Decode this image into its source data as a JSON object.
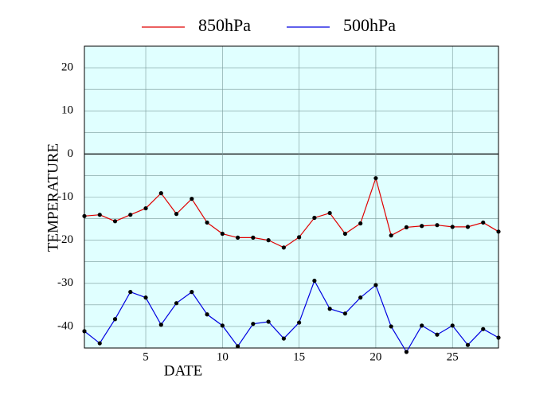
{
  "chart_data": {
    "type": "line",
    "x_label": "DATE",
    "y_label": "TEMPERATURE",
    "x": [
      1,
      2,
      3,
      4,
      5,
      6,
      7,
      8,
      9,
      10,
      11,
      12,
      13,
      14,
      15,
      16,
      17,
      18,
      19,
      20,
      21,
      22,
      23,
      24,
      25,
      26,
      27,
      28
    ],
    "series": [
      {
        "name": "850hPa",
        "color": "#e00000",
        "values": [
          -14.4,
          -14.1,
          -15.6,
          -14.1,
          -12.6,
          -9.1,
          -13.9,
          -10.4,
          -15.9,
          -18.5,
          -19.4,
          -19.4,
          -20,
          -21.7,
          -19.3,
          -14.8,
          -13.7,
          -18.5,
          -16.1,
          -5.6,
          -18.9,
          -17,
          -16.7,
          -16.5,
          -16.9,
          -16.9,
          -15.9,
          -18
        ]
      },
      {
        "name": "500hPa",
        "color": "#0000e0",
        "values": [
          -41.1,
          -43.9,
          -38.3,
          -32,
          -33.3,
          -39.6,
          -34.6,
          -32,
          -37.2,
          -39.8,
          -44.6,
          -39.4,
          -38.9,
          -42.8,
          -39.1,
          -29.4,
          -35.9,
          -37,
          -33.3,
          -30.4,
          -40,
          -45.9,
          -39.8,
          -41.9,
          -39.8,
          -44.3,
          -40.6,
          -42.6
        ]
      }
    ],
    "xlim": [
      1,
      28
    ],
    "xticks": [
      5,
      10,
      15,
      20,
      25
    ],
    "ylim": [
      -45,
      25
    ],
    "yticks": [
      -40,
      -30,
      -20,
      -10,
      0,
      10,
      20
    ],
    "yminorticks": [
      -35,
      -25,
      -15,
      -5,
      5,
      15
    ],
    "grid": true,
    "zero_line": true,
    "background": "#e0ffff",
    "legend": "top"
  }
}
